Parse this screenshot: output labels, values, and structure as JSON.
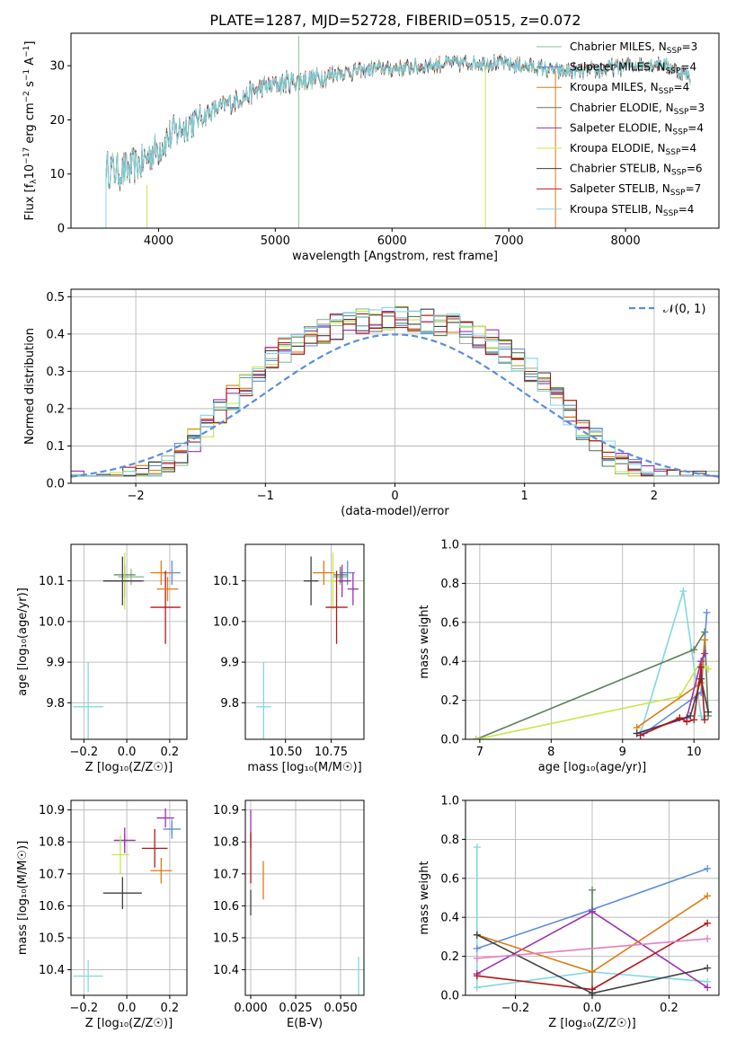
{
  "page_title": "PLATE=1287, MJD=52728, FIBERID=0515, z=0.072",
  "colors": {
    "Chabrier MILES": "#8fbc8f",
    "Salpeter MILES": "#5b8dd9",
    "Kroupa MILES": "#e07a10",
    "Chabrier ELODIE": "#5b7f5b",
    "Salpeter ELODIE": "#9b30b0",
    "Kroupa ELODIE": "#c8e64a",
    "Chabrier STELIB": "#404040",
    "Salpeter STELIB": "#b01818",
    "Kroupa STELIB": "#80d8e0"
  },
  "chart_data": [
    {
      "id": "spectrum",
      "type": "line",
      "title": "PLATE=1287, MJD=52728, FIBERID=0515, z=0.072",
      "xlabel": "wavelength [Angstrom, rest frame]",
      "ylabel_pre": "Flux [f",
      "ylabel_lambda": "λ",
      "ylabel_mid": "10",
      "ylabel_exp": "−17",
      "ylabel_post": " erg cm",
      "ylabel_exp2": "−2",
      "ylabel_post2": " s",
      "ylabel_exp3": "−1",
      "ylabel_post3": " A",
      "ylabel_exp4": "−1",
      "ylabel_end": "]",
      "xlim": [
        3250,
        8800
      ],
      "ylim": [
        0,
        36
      ],
      "xticks": [
        4000,
        5000,
        6000,
        7000,
        8000
      ],
      "yticks": [
        0,
        10,
        20,
        30
      ],
      "grid": false,
      "legend_placement": "top-right",
      "legend": [
        {
          "text": "Chabrier MILES, N",
          "sub": "SSP",
          "tail": "=3",
          "model": "Chabrier MILES"
        },
        {
          "text": "Salpeter MILES, N",
          "sub": "SSP",
          "tail": "=4",
          "model": "Salpeter MILES"
        },
        {
          "text": "Kroupa MILES, N",
          "sub": "SSP",
          "tail": "=4",
          "model": "Kroupa MILES"
        },
        {
          "text": "Chabrier ELODIE, N",
          "sub": "SSP",
          "tail": "=3",
          "model": "Chabrier ELODIE"
        },
        {
          "text": "Salpeter ELODIE, N",
          "sub": "SSP",
          "tail": "=4",
          "model": "Salpeter ELODIE"
        },
        {
          "text": "Kroupa ELODIE, N",
          "sub": "SSP",
          "tail": "=4",
          "model": "Kroupa ELODIE"
        },
        {
          "text": "Chabrier STELIB, N",
          "sub": "SSP",
          "tail": "=6",
          "model": "Chabrier STELIB"
        },
        {
          "text": "Salpeter STELIB, N",
          "sub": "SSP",
          "tail": "=7",
          "model": "Salpeter STELIB"
        },
        {
          "text": "Kroupa STELIB, N",
          "sub": "SSP",
          "tail": "=4",
          "model": "Kroupa STELIB"
        }
      ],
      "continuum": [
        [
          3550,
          11
        ],
        [
          3700,
          10.5
        ],
        [
          3850,
          12
        ],
        [
          3950,
          14
        ],
        [
          4100,
          17
        ],
        [
          4300,
          20
        ],
        [
          4500,
          22
        ],
        [
          4700,
          24
        ],
        [
          4900,
          26
        ],
        [
          5100,
          27
        ],
        [
          5300,
          27.5
        ],
        [
          5500,
          28.5
        ],
        [
          5700,
          29
        ],
        [
          5900,
          29.5
        ],
        [
          6100,
          29.5
        ],
        [
          6300,
          30
        ],
        [
          6500,
          30.5
        ],
        [
          6700,
          30.5
        ],
        [
          6900,
          30.5
        ],
        [
          7100,
          30
        ],
        [
          7300,
          29.5
        ],
        [
          7400,
          29
        ],
        [
          7700,
          29
        ],
        [
          8000,
          30
        ],
        [
          8300,
          30.5
        ],
        [
          8550,
          28
        ]
      ],
      "spikes": [
        {
          "x": 3550,
          "y0": 0,
          "y1": 11,
          "model": "Kroupa STELIB"
        },
        {
          "x": 3900,
          "y0": 0,
          "y1": 8,
          "model": "Kroupa ELODIE"
        },
        {
          "x": 5200,
          "y0": 0,
          "y1": 35.5,
          "model": "Chabrier MILES"
        },
        {
          "x": 6800,
          "y0": 0,
          "y1": 30,
          "model": "Kroupa ELODIE"
        },
        {
          "x": 7400,
          "y0": 0,
          "y1": 29,
          "model": "Kroupa MILES"
        }
      ]
    },
    {
      "id": "residuals",
      "type": "line",
      "xlabel": "(data-model)/error",
      "ylabel": "Normed distribution",
      "xlim": [
        -2.5,
        2.5
      ],
      "ylim": [
        0,
        0.52
      ],
      "xticks": [
        -2,
        -1,
        0,
        1,
        2
      ],
      "xtick_labels": [
        "−2",
        "−1",
        "0",
        "1",
        "2"
      ],
      "yticks": [
        0.0,
        0.1,
        0.2,
        0.3,
        0.4,
        0.5
      ],
      "ytick_labels": [
        "0.0",
        "0.1",
        "0.2",
        "0.3",
        "0.4",
        "0.5"
      ],
      "grid": true,
      "legend_placement": "top-right",
      "legend_label": "𝒩(0, 1)",
      "normal_pdf": {
        "mean": 0,
        "sigma": 1,
        "color": "#5b8dd9",
        "style": "dashed"
      },
      "hist_bin_width": 0.1,
      "hist_range": [
        -2.5,
        2.5
      ]
    },
    {
      "id": "age_vs_Z",
      "type": "scatter",
      "xlabel": "Z [log₁₀(Z/Z☉)]",
      "ylabel": "age  [log₁₀(age/yr)]",
      "xlim": [
        -0.26,
        0.28
      ],
      "ylim": [
        9.71,
        10.19
      ],
      "xticks": [
        -0.2,
        0.0,
        0.2
      ],
      "xtick_labels": [
        "−0.2",
        "0.0",
        "0.2"
      ],
      "yticks": [
        9.8,
        9.9,
        10.0,
        10.1
      ],
      "ytick_labels": [
        "9.8",
        "9.9",
        "10.0",
        "10.1"
      ],
      "grid": true,
      "points": [
        {
          "model": "Chabrier MILES",
          "x": 0.02,
          "y": 10.11,
          "xerr": 0.06,
          "yerr": 0.02
        },
        {
          "model": "Salpeter MILES",
          "x": 0.21,
          "y": 10.12,
          "xerr": 0.04,
          "yerr": 0.03
        },
        {
          "model": "Kroupa MILES",
          "x": 0.16,
          "y": 10.12,
          "xerr": 0.05,
          "yerr": 0.03
        },
        {
          "model": "Chabrier ELODIE",
          "x": -0.01,
          "y": 10.115,
          "xerr": 0.05,
          "yerr": 0.02
        },
        {
          "model": "Salpeter ELODIE",
          "x": -0.01,
          "y": 10.1,
          "xerr": 0.09,
          "yerr": 0.04
        },
        {
          "model": "Kroupa ELODIE",
          "x": -0.01,
          "y": 10.1,
          "xerr": 0.03,
          "yerr": 0.07
        },
        {
          "model": "Chabrier STELIB",
          "x": -0.02,
          "y": 10.1,
          "xerr": 0.09,
          "yerr": 0.06
        },
        {
          "model": "Salpeter STELIB",
          "x": 0.18,
          "y": 10.035,
          "xerr": 0.07,
          "yerr": 0.09
        },
        {
          "model": "Kroupa STELIB",
          "x": -0.18,
          "y": 9.79,
          "xerr": 0.07,
          "yerr": 0.11
        },
        {
          "model": "Kroupa MILES",
          "x": 0.19,
          "y": 10.08,
          "xerr": 0.05,
          "yerr": 0.03
        }
      ]
    },
    {
      "id": "age_vs_mass",
      "type": "scatter",
      "xlabel": "mass [log₁₀(M/M☉)]",
      "xlim": [
        10.28,
        10.93
      ],
      "ylim": [
        9.71,
        10.19
      ],
      "xticks": [
        10.5,
        10.75
      ],
      "xtick_labels": [
        "10.50",
        "10.75"
      ],
      "yticks": [
        9.8,
        9.9,
        10.0,
        10.1
      ],
      "ytick_labels": [
        "9.8",
        "9.9",
        "10.0",
        "10.1"
      ],
      "grid": true,
      "points": [
        {
          "model": "Chabrier MILES",
          "x": 10.8,
          "y": 10.11,
          "xerr": 0.04,
          "yerr": 0.02
        },
        {
          "model": "Salpeter MILES",
          "x": 10.84,
          "y": 10.12,
          "xerr": 0.04,
          "yerr": 0.03
        },
        {
          "model": "Kroupa MILES",
          "x": 10.71,
          "y": 10.12,
          "xerr": 0.06,
          "yerr": 0.03
        },
        {
          "model": "Chabrier ELODIE",
          "x": 10.8,
          "y": 10.115,
          "xerr": 0.04,
          "yerr": 0.02
        },
        {
          "model": "Salpeter ELODIE",
          "x": 10.81,
          "y": 10.1,
          "xerr": 0.05,
          "yerr": 0.04
        },
        {
          "model": "Kroupa ELODIE",
          "x": 10.76,
          "y": 10.1,
          "xerr": 0.03,
          "yerr": 0.07
        },
        {
          "model": "Chabrier STELIB",
          "x": 10.64,
          "y": 10.1,
          "xerr": 0.04,
          "yerr": 0.06
        },
        {
          "model": "Salpeter STELIB",
          "x": 10.78,
          "y": 10.035,
          "xerr": 0.06,
          "yerr": 0.09
        },
        {
          "model": "Kroupa STELIB",
          "x": 10.38,
          "y": 9.79,
          "xerr": 0.04,
          "yerr": 0.11
        },
        {
          "model": "Salpeter ELODIE",
          "x": 10.87,
          "y": 10.08,
          "xerr": 0.03,
          "yerr": 0.04
        }
      ]
    },
    {
      "id": "weight_vs_age",
      "type": "line",
      "xlabel": "age  [log₁₀(age/yr)]",
      "ylabel": "mass weight",
      "xlim": [
        6.8,
        10.35
      ],
      "ylim": [
        0,
        1
      ],
      "xticks": [
        7,
        8,
        9,
        10
      ],
      "xtick_labels": [
        "7",
        "8",
        "9",
        "10"
      ],
      "yticks": [
        0.0,
        0.2,
        0.4,
        0.6,
        0.8,
        1.0
      ],
      "ytick_labels": [
        "0.0",
        "0.2",
        "0.4",
        "0.6",
        "0.8",
        "1.0"
      ],
      "grid": true,
      "series": [
        {
          "model": "Kroupa STELIB",
          "x": [
            9.25,
            9.85,
            10.1,
            10.15
          ],
          "y": [
            0.03,
            0.76,
            0.12,
            0.1
          ]
        },
        {
          "model": "Chabrier ELODIE",
          "x": [
            6.95,
            10.0,
            10.15,
            10.2
          ],
          "y": [
            0.0,
            0.46,
            0.55,
            0.12
          ]
        },
        {
          "model": "Kroupa ELODIE",
          "x": [
            6.95,
            9.8,
            10.1,
            10.2
          ],
          "y": [
            0.0,
            0.22,
            0.4,
            0.36
          ]
        },
        {
          "model": "Salpeter MILES",
          "x": [
            9.3,
            10.1,
            10.18
          ],
          "y": [
            0.03,
            0.24,
            0.65
          ]
        },
        {
          "model": "Kroupa MILES",
          "x": [
            9.2,
            10.1,
            10.15
          ],
          "y": [
            0.06,
            0.29,
            0.51
          ]
        },
        {
          "model": "Salpeter ELODIE",
          "x": [
            9.2,
            9.9,
            10.1,
            10.15
          ],
          "y": [
            0.03,
            0.11,
            0.4,
            0.44
          ]
        },
        {
          "model": "Chabrier STELIB",
          "x": [
            9.2,
            9.95,
            10.1,
            10.2
          ],
          "y": [
            0.03,
            0.12,
            0.31,
            0.14
          ]
        },
        {
          "model": "Salpeter STELIB",
          "x": [
            9.25,
            9.8,
            9.9,
            10.0,
            10.1,
            10.15
          ],
          "y": [
            0.02,
            0.11,
            0.09,
            0.1,
            0.37,
            0.1
          ]
        }
      ]
    },
    {
      "id": "mass_vs_Z",
      "type": "scatter",
      "xlabel": "Z [log₁₀(Z/Z☉)]",
      "ylabel": "mass [log₁₀(M/M☉)]",
      "xlim": [
        -0.26,
        0.28
      ],
      "ylim": [
        10.32,
        10.93
      ],
      "xticks": [
        -0.2,
        0.0,
        0.2
      ],
      "xtick_labels": [
        "−0.2",
        "0.0",
        "0.2"
      ],
      "yticks": [
        10.4,
        10.5,
        10.6,
        10.7,
        10.8,
        10.9
      ],
      "ytick_labels": [
        "10.4",
        "10.5",
        "10.6",
        "10.7",
        "10.8",
        "10.9"
      ],
      "grid": true,
      "points": [
        {
          "model": "Chabrier MILES",
          "x": 0.21,
          "y": 10.84,
          "xerr": 0.04,
          "yerr": 0.02
        },
        {
          "model": "Salpeter MILES",
          "x": 0.21,
          "y": 10.84,
          "xerr": 0.04,
          "yerr": 0.03
        },
        {
          "model": "Kroupa MILES",
          "x": 0.16,
          "y": 10.71,
          "xerr": 0.05,
          "yerr": 0.04
        },
        {
          "model": "Chabrier ELODIE",
          "x": -0.01,
          "y": 10.805,
          "xerr": 0.05,
          "yerr": 0.02
        },
        {
          "model": "Salpeter ELODIE",
          "x": -0.01,
          "y": 10.805,
          "xerr": 0.05,
          "yerr": 0.04
        },
        {
          "model": "Kroupa ELODIE",
          "x": -0.03,
          "y": 10.76,
          "xerr": 0.04,
          "yerr": 0.06
        },
        {
          "model": "Chabrier STELIB",
          "x": -0.02,
          "y": 10.64,
          "xerr": 0.09,
          "yerr": 0.05
        },
        {
          "model": "Salpeter STELIB",
          "x": 0.13,
          "y": 10.78,
          "xerr": 0.06,
          "yerr": 0.06
        },
        {
          "model": "Kroupa STELIB",
          "x": -0.18,
          "y": 10.38,
          "xerr": 0.07,
          "yerr": 0.05
        },
        {
          "model": "Salpeter ELODIE",
          "x": 0.18,
          "y": 10.875,
          "xerr": 0.04,
          "yerr": 0.03
        }
      ]
    },
    {
      "id": "mass_vs_ebv",
      "type": "scatter",
      "xlabel": "E(B-V)",
      "xlim": [
        -0.003,
        0.063
      ],
      "ylim": [
        10.32,
        10.93
      ],
      "xticks": [
        0.0,
        0.025,
        0.05
      ],
      "xtick_labels": [
        "0.000",
        "0.025",
        "0.050"
      ],
      "yticks": [
        10.4,
        10.5,
        10.6,
        10.7,
        10.8,
        10.9
      ],
      "ytick_labels": [
        "10.4",
        "10.5",
        "10.6",
        "10.7",
        "10.8",
        "10.9"
      ],
      "grid": true,
      "points": [
        {
          "model": "Salpeter ELODIE",
          "x": 0.0,
          "y": 10.84,
          "xerr": 0,
          "yerr": 0.06
        },
        {
          "model": "Salpeter STELIB",
          "x": 0.0,
          "y": 10.75,
          "xerr": 0,
          "yerr": 0.08
        },
        {
          "model": "Chabrier STELIB",
          "x": 0.0,
          "y": 10.61,
          "xerr": 0,
          "yerr": 0.04
        },
        {
          "model": "Kroupa MILES",
          "x": 0.007,
          "y": 10.68,
          "xerr": 0,
          "yerr": 0.06
        },
        {
          "model": "Kroupa STELIB",
          "x": 0.06,
          "y": 10.38,
          "xerr": 0,
          "yerr": 0.06
        }
      ]
    },
    {
      "id": "weight_vs_Z",
      "type": "line",
      "xlabel": "Z [log₁₀(Z/Z☉)]",
      "ylabel": "mass weight",
      "xlim": [
        -0.33,
        0.33
      ],
      "ylim": [
        0,
        1
      ],
      "xticks": [
        -0.2,
        0.0,
        0.2
      ],
      "xtick_labels": [
        "−0.2",
        "0.0",
        "0.2"
      ],
      "yticks": [
        0.0,
        0.2,
        0.4,
        0.6,
        0.8,
        1.0
      ],
      "ytick_labels": [
        "0.0",
        "0.2",
        "0.4",
        "0.6",
        "0.8",
        "1.0"
      ],
      "grid": true,
      "series": [
        {
          "model": "Kroupa STELIB",
          "x": [
            -0.3,
            -0.3,
            0.0,
            0.3
          ],
          "y": [
            0.76,
            0.04,
            0.12,
            0.07
          ]
        },
        {
          "model": "Salpeter MILES",
          "x": [
            -0.3,
            0.0,
            0.3
          ],
          "y": [
            0.24,
            0.44,
            0.65
          ]
        },
        {
          "model": "Chabrier ELODIE",
          "x": [
            0.0,
            0.0
          ],
          "y": [
            0.54,
            0.0
          ]
        },
        {
          "model": "Salpeter ELODIE",
          "x": [
            -0.3,
            0.0,
            0.3
          ],
          "y": [
            0.11,
            0.43,
            0.04
          ]
        },
        {
          "model": "Kroupa MILES",
          "x": [
            -0.3,
            0.0,
            0.3
          ],
          "y": [
            0.31,
            0.12,
            0.51
          ]
        },
        {
          "model": "Salpeter STELIB",
          "x": [
            -0.3,
            0.0,
            0.3
          ],
          "y": [
            0.1,
            0.03,
            0.37
          ]
        },
        {
          "model": "Chabrier STELIB",
          "x": [
            -0.3,
            0.0,
            0.3
          ],
          "y": [
            0.31,
            0.01,
            0.14
          ]
        },
        {
          "model": "pink",
          "x": [
            -0.3,
            0.3
          ],
          "y": [
            0.19,
            0.29
          ]
        }
      ]
    }
  ]
}
